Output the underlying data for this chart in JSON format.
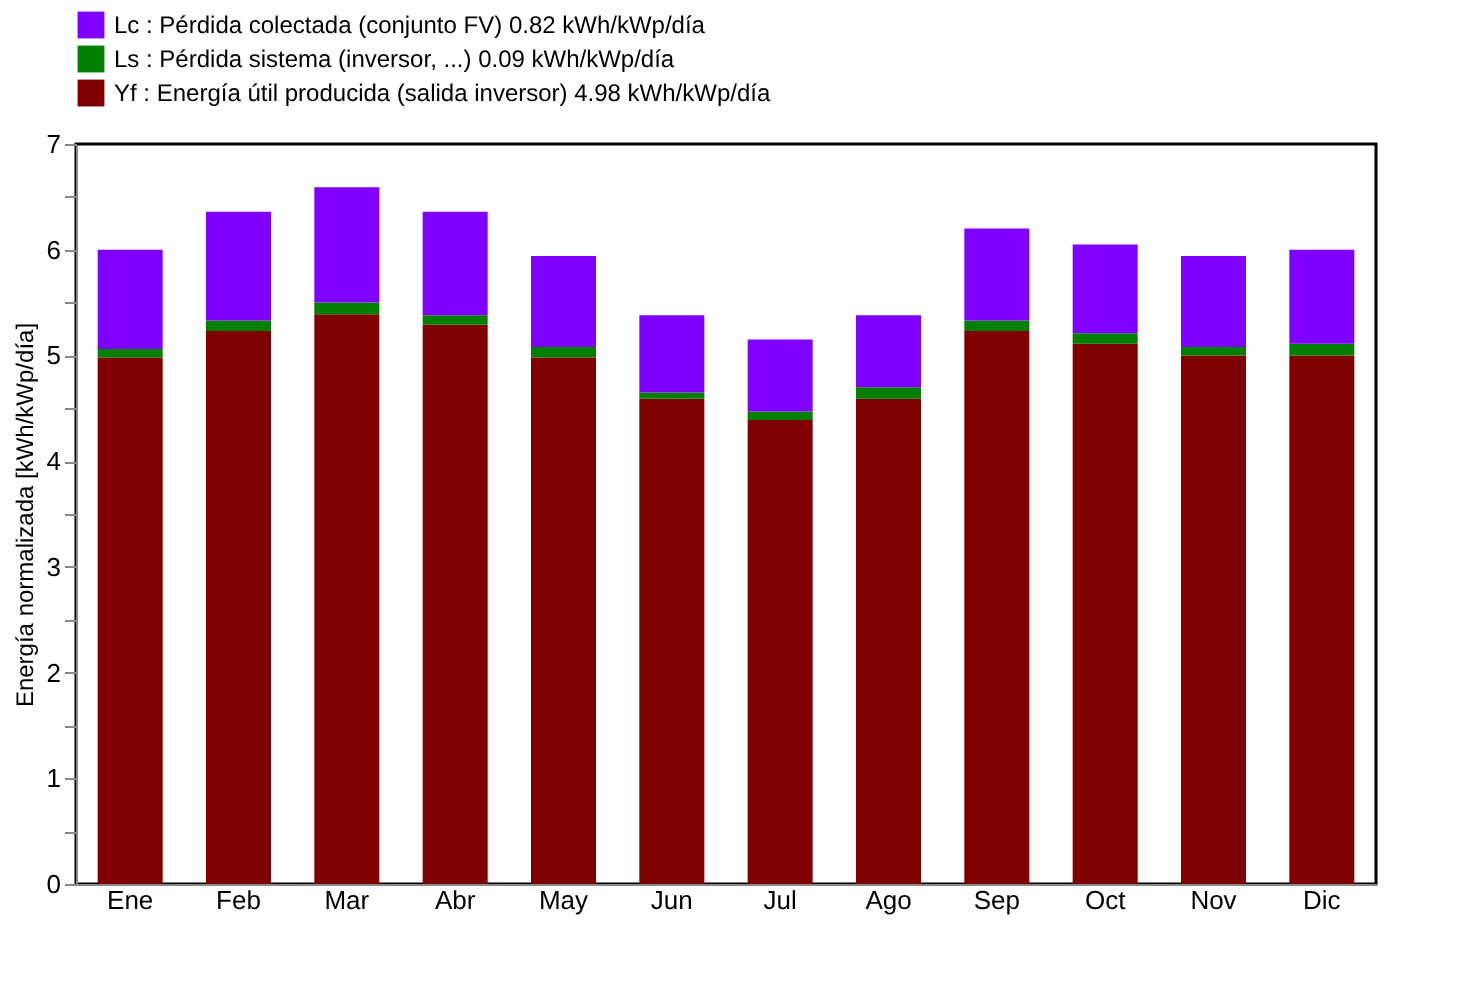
{
  "chart_data": {
    "type": "bar",
    "stacked": true,
    "ylabel": "Energía normalizada [kWh/kWp/día]",
    "categories": [
      "Ene",
      "Feb",
      "Mar",
      "Abr",
      "May",
      "Jun",
      "Jul",
      "Ago",
      "Sep",
      "Oct",
      "Nov",
      "Dic"
    ],
    "series": [
      {
        "name": "Yf : Energía útil producida (salida inversor)  4.98 kWh/kWp/día",
        "color": "#7f0000",
        "values": [
          4.98,
          5.23,
          5.39,
          5.29,
          4.98,
          4.59,
          4.39,
          4.59,
          5.23,
          5.11,
          5.0,
          5.0
        ]
      },
      {
        "name": "Ls : Pérdida sistema (inversor, ...)  0.09 kWh/kWp/día",
        "color": "#007f00",
        "values": [
          0.08,
          0.1,
          0.11,
          0.09,
          0.1,
          0.06,
          0.08,
          0.11,
          0.1,
          0.1,
          0.08,
          0.11
        ]
      },
      {
        "name": "Lc : Pérdida colectada (conjunto FV)  0.82 kWh/kWp/día",
        "color": "#8000ff",
        "values": [
          0.94,
          1.03,
          1.09,
          0.98,
          0.86,
          0.73,
          0.68,
          0.68,
          0.87,
          0.84,
          0.86,
          0.89
        ]
      }
    ],
    "ylim": [
      0,
      7
    ],
    "yticks": [
      0,
      {
        "value": 0.5,
        "label": null
      },
      1,
      {
        "value": 1.5,
        "label": null
      },
      2,
      {
        "value": 2.5,
        "label": null
      },
      3,
      {
        "value": 3.5,
        "label": null
      },
      4,
      {
        "value": 4.5,
        "label": null
      },
      5,
      {
        "value": 5.5,
        "label": null
      },
      6,
      {
        "value": 6.5,
        "label": null
      },
      7
    ],
    "grid": false,
    "legend": "top"
  }
}
